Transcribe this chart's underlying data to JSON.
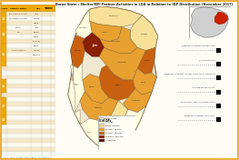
{
  "title": "Borno State : Shelter/NFI Partner Activities in LGA in Relation to IDP Distribution (November 2017)",
  "background_color": "#FEFCF5",
  "border_color": "#E8A020",
  "table_bg": "#FEFCF5",
  "table_header_orange": "#F0A800",
  "section_colors": [
    "#F0A800",
    "#F0A800",
    "#F0A800",
    "#F0A800",
    "#F0A800",
    "#F0A800"
  ],
  "section_labels": [
    "13",
    "14",
    "15",
    "16",
    "17",
    "18"
  ],
  "legend_colors": [
    "#FFFCE0",
    "#F7E098",
    "#E8A030",
    "#C86010",
    "#8B2000",
    "#5C0A00"
  ],
  "legend_labels": [
    "< 5,000",
    "5,000 - 25,000",
    "25,000 - 75,000",
    "75,000 - 150,000",
    "150,000 - 250,000",
    "> 250,000"
  ],
  "map_lgas": {
    "Maiduguri_metro": {
      "color": "#FFFCE0",
      "label": "Maiduguri"
    },
    "Jere": {
      "color": "#8B2000",
      "label": "Jere"
    },
    "Bama": {
      "color": "#C86010",
      "label": "Bama"
    },
    "Konduga": {
      "color": "#E8A030",
      "label": "Konduga"
    },
    "Gwoza": {
      "color": "#C86010",
      "label": "Gwoza"
    },
    "Monguno": {
      "color": "#E8A030",
      "label": "Monguno"
    },
    "Nganzai": {
      "color": "#F7E098",
      "label": "Nganzai"
    },
    "Kala_Balge": {
      "color": "#E8A030",
      "label": "Kala/Balge"
    },
    "Dikwa": {
      "color": "#E8A030",
      "label": "Dikwa"
    },
    "Ngala": {
      "color": "#E8A030",
      "label": "Ngala"
    },
    "Damboa": {
      "color": "#E8A030",
      "label": "Damboa"
    },
    "Chibok": {
      "color": "#F7E098",
      "label": "Chibok"
    },
    "Hawul": {
      "color": "#FFFCE0",
      "label": "Hawul"
    },
    "Biu": {
      "color": "#FFFCE0",
      "label": "Biu"
    },
    "Askira": {
      "color": "#FFFCE0",
      "label": "Askira/Uba"
    },
    "Shani": {
      "color": "#FFFCE0",
      "label": "Shani"
    },
    "Biulari": {
      "color": "#F7E098",
      "label": "Biulari"
    },
    "Mobbar": {
      "color": "#F7E098",
      "label": "Mobbar"
    },
    "Kukawa": {
      "color": "#F7E098",
      "label": "Kukawa"
    },
    "Marte": {
      "color": "#C86010",
      "label": "Marte"
    },
    "Gubio": {
      "color": "#E8A030",
      "label": "Gubio"
    },
    "Magumeri": {
      "color": "#E8A030",
      "label": "Magumeri"
    },
    "Borsari": {
      "color": "#F7E098",
      "label": "Borsari"
    },
    "Kwaya": {
      "color": "#FFFCE0",
      "label": "Kwaya Kusar"
    },
    "Guzamala": {
      "color": "#F7E098",
      "label": "Guzamala"
    }
  },
  "right_annotations": [
    "EMERGENCY SHELTER CONSTRUCTION",
    "NFI DISTRIBUTION",
    "EMERGENCY SHELTER CONSTRUCTION / NFI DISTRIBUTION",
    "SHELTER REHABILITATION",
    "TRANSITIONAL SHELTER CONSTRUCTION",
    "EMERGENCY SHELTER / NFI / CCCM"
  ]
}
